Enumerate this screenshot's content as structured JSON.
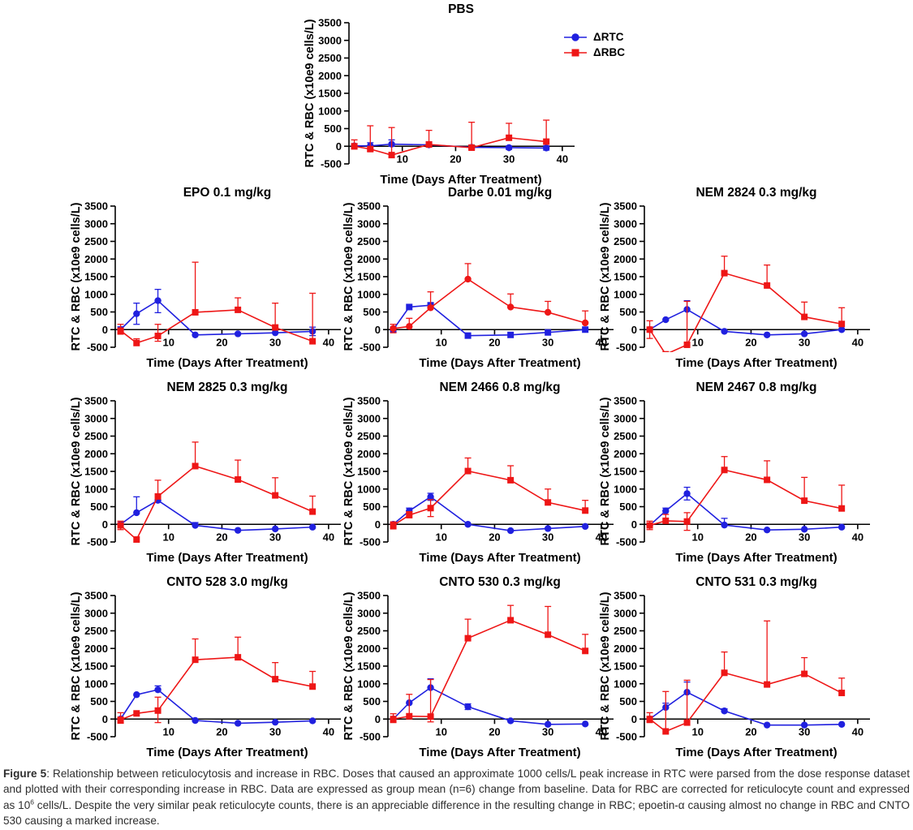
{
  "figure": {
    "caption": {
      "label": "Figure 5",
      "part1": ": Relationship between reticulocytosis and increase in RBC. Doses that caused an approximate 1000 cells/L peak increase in RTC were parsed from the dose response dataset and plotted with their corresponding increase in RBC. Data are expressed as group mean (n=6) change from baseline. Data for RBC are corrected for reticulocyte count and expressed as 10",
      "sup": "6",
      "part2": " cells/L. Despite the very similar peak reticulocyte counts, there is an appreciable difference in the resulting change in RBC; epoetin-α causing almost no change in RBC and CNTO 530 causing a marked increase."
    }
  },
  "legend": {
    "position": "right-of-PBS-chart",
    "entries": [
      {
        "label": "ΔRTC",
        "color": "#2020df",
        "marker": "circle"
      },
      {
        "label": "ΔRBC",
        "color": "#ee1616",
        "marker": "square"
      }
    ]
  },
  "colors": {
    "rtc_blue": "#2020df",
    "rbc_red": "#ee1616",
    "axis_black": "#000000"
  },
  "chart_data": [
    {
      "type": "line",
      "title": "PBS",
      "xlabel": "Time (Days After Treatment)",
      "ylabel": "RTC & RBC (x10e9 cells/L)",
      "xlim": [
        0,
        42
      ],
      "ylim": [
        -500,
        3500
      ],
      "xticks": [
        10,
        20,
        30,
        40
      ],
      "yticks": [
        -500,
        0,
        500,
        1000,
        1500,
        2000,
        2500,
        3000,
        3500
      ],
      "x": [
        1,
        4,
        8,
        15,
        23,
        30,
        37
      ],
      "series": [
        {
          "name": "ΔRTC",
          "color": "#2020df",
          "marker": "circle",
          "values": [
            10,
            10,
            60,
            40,
            -30,
            -40,
            -50
          ],
          "err_up": [
            60,
            90,
            120,
            80,
            60,
            50,
            60
          ],
          "err_down": [
            60,
            90,
            60,
            60,
            50,
            50,
            60
          ]
        },
        {
          "name": "ΔRBC",
          "color": "#ee1616",
          "marker": "square",
          "values": [
            0,
            -80,
            -250,
            50,
            -40,
            240,
            130
          ],
          "err_up": [
            180,
            660,
            780,
            400,
            720,
            410,
            610
          ],
          "err_down": [
            80,
            60,
            0,
            60,
            50,
            0,
            0
          ]
        }
      ]
    },
    {
      "type": "line",
      "title": "EPO 0.1 mg/kg",
      "xlabel": "Time (Days After Treatment)",
      "ylabel": "RTC & RBC (x10e9 cells/L)",
      "xlim": [
        0,
        42
      ],
      "ylim": [
        -500,
        3500
      ],
      "xticks": [
        10,
        20,
        30,
        40
      ],
      "yticks": [
        -500,
        0,
        500,
        1000,
        1500,
        2000,
        2500,
        3000,
        3500
      ],
      "x": [
        1,
        4,
        8,
        15,
        23,
        30,
        37
      ],
      "series": [
        {
          "name": "ΔRTC",
          "color": "#2020df",
          "marker": "circle",
          "values": [
            0,
            450,
            820,
            -150,
            -120,
            -90,
            -50
          ],
          "err_up": [
            80,
            300,
            320,
            0,
            0,
            0,
            120
          ],
          "err_down": [
            80,
            300,
            340,
            0,
            0,
            0,
            120
          ]
        },
        {
          "name": "ΔRBC",
          "color": "#ee1616",
          "marker": "square",
          "values": [
            -30,
            -380,
            -180,
            490,
            560,
            60,
            -330
          ],
          "err_up": [
            180,
            120,
            330,
            1420,
            340,
            690,
            1360
          ],
          "err_down": [
            100,
            0,
            150,
            0,
            0,
            0,
            0
          ]
        }
      ]
    },
    {
      "type": "line",
      "title": "Darbe 0.01 mg/kg",
      "xlabel": "Time (Days After Treatment)",
      "ylabel": "RTC & RBC (x10e9 cells/L)",
      "xlim": [
        0,
        42
      ],
      "ylim": [
        -500,
        3500
      ],
      "xticks": [
        10,
        20,
        30,
        40
      ],
      "yticks": [
        -500,
        0,
        500,
        1000,
        1500,
        2000,
        2500,
        3000,
        3500
      ],
      "x": [
        1,
        4,
        8,
        15,
        23,
        30,
        37
      ],
      "series": [
        {
          "name": "ΔRTC",
          "color": "#2020df",
          "marker": "square",
          "values": [
            0,
            640,
            690,
            -170,
            -150,
            -80,
            0
          ],
          "err_up": [
            60,
            0,
            0,
            0,
            0,
            0,
            0
          ],
          "err_down": [
            0,
            0,
            0,
            0,
            0,
            0,
            0
          ]
        },
        {
          "name": "ΔRBC",
          "color": "#ee1616",
          "marker": "circle",
          "values": [
            30,
            90,
            620,
            1430,
            640,
            490,
            190
          ],
          "err_up": [
            120,
            230,
            450,
            440,
            370,
            310,
            340
          ],
          "err_down": [
            120,
            0,
            0,
            0,
            0,
            0,
            0
          ]
        }
      ]
    },
    {
      "type": "line",
      "title": "NEM 2824 0.3 mg/kg",
      "xlabel": "Time (Days After Treatment)",
      "ylabel": "RTC & RBC (x10e9 cells/L)",
      "xlim": [
        0,
        42
      ],
      "ylim": [
        -500,
        3500
      ],
      "xticks": [
        10,
        20,
        30,
        40
      ],
      "yticks": [
        -500,
        0,
        500,
        1000,
        1500,
        2000,
        2500,
        3000,
        3500
      ],
      "x": [
        1,
        4,
        8,
        15,
        23,
        30,
        37
      ],
      "series": [
        {
          "name": "ΔRTC",
          "color": "#2020df",
          "marker": "circle",
          "values": [
            0,
            280,
            570,
            -50,
            -150,
            -120,
            0
          ],
          "err_up": [
            0,
            0,
            250,
            0,
            0,
            0,
            0
          ],
          "err_down": [
            0,
            0,
            0,
            0,
            0,
            0,
            0
          ]
        },
        {
          "name": "ΔRBC",
          "color": "#ee1616",
          "marker": "square",
          "values": [
            0,
            -700,
            -430,
            1600,
            1250,
            360,
            160
          ],
          "err_up": [
            250,
            0,
            1230,
            480,
            580,
            420,
            460
          ],
          "err_down": [
            250,
            0,
            0,
            0,
            0,
            0,
            0
          ]
        }
      ]
    },
    {
      "type": "line",
      "title": "NEM 2825 0.3 mg/kg",
      "xlabel": "Time (Days After Treatment)",
      "ylabel": "RTC & RBC (x10e9 cells/L)",
      "xlim": [
        0,
        42
      ],
      "ylim": [
        -500,
        3500
      ],
      "xticks": [
        10,
        20,
        30,
        40
      ],
      "yticks": [
        -500,
        0,
        500,
        1000,
        1500,
        2000,
        2500,
        3000,
        3500
      ],
      "x": [
        1,
        4,
        8,
        15,
        23,
        30,
        37
      ],
      "series": [
        {
          "name": "ΔRTC",
          "color": "#2020df",
          "marker": "circle",
          "values": [
            0,
            330,
            680,
            -30,
            -170,
            -130,
            -80
          ],
          "err_up": [
            0,
            450,
            0,
            80,
            0,
            0,
            0
          ],
          "err_down": [
            0,
            0,
            0,
            0,
            0,
            0,
            0
          ]
        },
        {
          "name": "ΔRBC",
          "color": "#ee1616",
          "marker": "square",
          "values": [
            -30,
            -430,
            790,
            1650,
            1270,
            820,
            360
          ],
          "err_up": [
            120,
            0,
            460,
            680,
            550,
            500,
            440
          ],
          "err_down": [
            120,
            0,
            0,
            0,
            0,
            0,
            0
          ]
        }
      ]
    },
    {
      "type": "line",
      "title": "NEM 2466 0.8 mg/kg",
      "xlabel": "Time (Days After Treatment)",
      "ylabel": "RTC & RBC (x10e9 cells/L)",
      "xlim": [
        0,
        42
      ],
      "ylim": [
        -500,
        3500
      ],
      "xticks": [
        10,
        20,
        30,
        40
      ],
      "yticks": [
        -500,
        0,
        500,
        1000,
        1500,
        2000,
        2500,
        3000,
        3500
      ],
      "x": [
        1,
        4,
        8,
        15,
        23,
        30,
        37
      ],
      "series": [
        {
          "name": "ΔRTC",
          "color": "#2020df",
          "marker": "circle",
          "values": [
            0,
            380,
            780,
            0,
            -180,
            -120,
            -60
          ],
          "err_up": [
            0,
            80,
            100,
            0,
            0,
            0,
            0
          ],
          "err_down": [
            0,
            80,
            100,
            0,
            0,
            0,
            0
          ]
        },
        {
          "name": "ΔRBC",
          "color": "#ee1616",
          "marker": "square",
          "values": [
            -30,
            260,
            460,
            1510,
            1250,
            620,
            390
          ],
          "err_up": [
            100,
            100,
            240,
            370,
            410,
            380,
            290
          ],
          "err_down": [
            100,
            0,
            240,
            0,
            0,
            0,
            0
          ]
        }
      ]
    },
    {
      "type": "line",
      "title": "NEM 2467 0.8 mg/kg",
      "xlabel": "Time (Days After Treatment)",
      "ylabel": "RTC & RBC (x10e9 cells/L)",
      "xlim": [
        0,
        42
      ],
      "ylim": [
        -500,
        3500
      ],
      "xticks": [
        10,
        20,
        30,
        40
      ],
      "yticks": [
        -500,
        0,
        500,
        1000,
        1500,
        2000,
        2500,
        3000,
        3500
      ],
      "x": [
        1,
        4,
        8,
        15,
        23,
        30,
        37
      ],
      "series": [
        {
          "name": "ΔRTC",
          "color": "#2020df",
          "marker": "circle",
          "values": [
            -30,
            380,
            870,
            -20,
            -160,
            -140,
            -80
          ],
          "err_up": [
            0,
            80,
            180,
            190,
            0,
            0,
            0
          ],
          "err_down": [
            0,
            0,
            180,
            0,
            0,
            0,
            0
          ]
        },
        {
          "name": "ΔRBC",
          "color": "#ee1616",
          "marker": "square",
          "values": [
            -30,
            100,
            80,
            1540,
            1260,
            670,
            450
          ],
          "err_up": [
            120,
            180,
            250,
            380,
            540,
            660,
            660
          ],
          "err_down": [
            120,
            0,
            250,
            0,
            0,
            0,
            0
          ]
        }
      ]
    },
    {
      "type": "line",
      "title": "CNTO 528 3.0 mg/kg",
      "xlabel": "Time (Days After Treatment)",
      "ylabel": "RTC & RBC (x10e9 cells/L)",
      "xlim": [
        0,
        42
      ],
      "ylim": [
        -500,
        3500
      ],
      "xticks": [
        10,
        20,
        30,
        40
      ],
      "yticks": [
        -500,
        0,
        500,
        1000,
        1500,
        2000,
        2500,
        3000,
        3500
      ],
      "x": [
        1,
        4,
        8,
        15,
        23,
        30,
        37
      ],
      "series": [
        {
          "name": "ΔRTC",
          "color": "#2020df",
          "marker": "circle",
          "values": [
            0,
            690,
            830,
            -40,
            -120,
            -90,
            -50
          ],
          "err_up": [
            0,
            0,
            110,
            0,
            0,
            0,
            0
          ],
          "err_down": [
            0,
            0,
            0,
            0,
            0,
            0,
            0
          ]
        },
        {
          "name": "ΔRBC",
          "color": "#ee1616",
          "marker": "square",
          "values": [
            -20,
            160,
            240,
            1680,
            1750,
            1130,
            920
          ],
          "err_up": [
            200,
            0,
            380,
            590,
            570,
            470,
            430
          ],
          "err_down": [
            100,
            0,
            340,
            0,
            0,
            0,
            0
          ]
        }
      ]
    },
    {
      "type": "line",
      "title": "CNTO 530 0.3 mg/kg",
      "xlabel": "Time (Days After Treatment)",
      "ylabel": "RTC & RBC (x10e9 cells/L)",
      "xlim": [
        0,
        42
      ],
      "ylim": [
        -500,
        3500
      ],
      "xticks": [
        10,
        20,
        30,
        40
      ],
      "yticks": [
        -500,
        0,
        500,
        1000,
        1500,
        2000,
        2500,
        3000,
        3500
      ],
      "x": [
        1,
        4,
        8,
        15,
        23,
        30,
        37
      ],
      "series": [
        {
          "name": "ΔRTC",
          "color": "#2020df",
          "marker": "circle",
          "values": [
            0,
            460,
            890,
            350,
            -50,
            -150,
            -140
          ],
          "err_up": [
            0,
            0,
            250,
            80,
            0,
            0,
            0
          ],
          "err_down": [
            0,
            0,
            0,
            80,
            0,
            0,
            0
          ]
        },
        {
          "name": "ΔRBC",
          "color": "#ee1616",
          "marker": "square",
          "values": [
            0,
            80,
            70,
            2290,
            2800,
            2390,
            1930
          ],
          "err_up": [
            150,
            620,
            1050,
            540,
            420,
            800,
            470
          ],
          "err_down": [
            100,
            0,
            150,
            0,
            0,
            0,
            0
          ]
        }
      ]
    },
    {
      "type": "line",
      "title": "CNTO 531 0.3 mg/kg",
      "xlabel": "Time (Days After Treatment)",
      "ylabel": "RTC & RBC (x10e9 cells/L)",
      "xlim": [
        0,
        42
      ],
      "ylim": [
        -500,
        3500
      ],
      "xticks": [
        10,
        20,
        30,
        40
      ],
      "yticks": [
        -500,
        0,
        500,
        1000,
        1500,
        2000,
        2500,
        3000,
        3500
      ],
      "x": [
        1,
        4,
        8,
        15,
        23,
        30,
        37
      ],
      "series": [
        {
          "name": "ΔRTC",
          "color": "#2020df",
          "marker": "circle",
          "values": [
            0,
            330,
            760,
            230,
            -170,
            -170,
            -150
          ],
          "err_up": [
            0,
            120,
            290,
            60,
            0,
            0,
            0
          ],
          "err_down": [
            0,
            0,
            0,
            0,
            0,
            0,
            0
          ]
        },
        {
          "name": "ΔRBC",
          "color": "#ee1616",
          "marker": "square",
          "values": [
            0,
            -350,
            -100,
            1310,
            980,
            1280,
            740
          ],
          "err_up": [
            180,
            1130,
            1200,
            590,
            1800,
            460,
            420
          ],
          "err_down": [
            100,
            0,
            0,
            0,
            0,
            0,
            0
          ]
        }
      ]
    }
  ]
}
